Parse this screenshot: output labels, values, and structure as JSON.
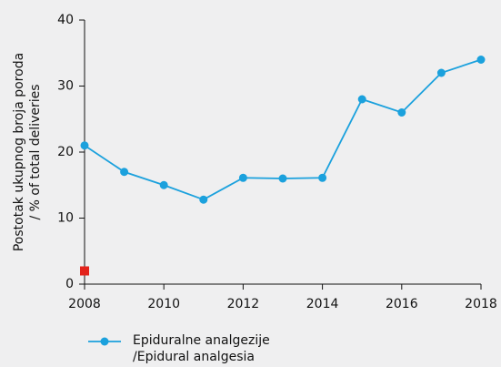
{
  "chart_data": {
    "type": "line",
    "ylabel": [
      "Postotak ukupnog broja poroda",
      "/ % of total deliveries"
    ],
    "x": [
      2008,
      2009,
      2010,
      2011,
      2012,
      2013,
      2014,
      2015,
      2016,
      2017,
      2018
    ],
    "series": [
      {
        "name": "Epiduralne analgezije\n/Epidural analgesia",
        "color": "#1ba1dd",
        "values": [
          21,
          17,
          15,
          12.8,
          16.1,
          16,
          16.1,
          28,
          26,
          32,
          34
        ]
      },
      {
        "color": "#e3231b",
        "marker": "square",
        "values": [
          2,
          null,
          null,
          null,
          null,
          null,
          null,
          null,
          null,
          null,
          null
        ]
      }
    ],
    "xlim": [
      2008,
      2018
    ],
    "xticks": [
      2008,
      2010,
      2012,
      2014,
      2016,
      2018
    ],
    "ylim": [
      0,
      40
    ],
    "yticks": [
      0,
      10,
      20,
      30,
      40
    ]
  }
}
